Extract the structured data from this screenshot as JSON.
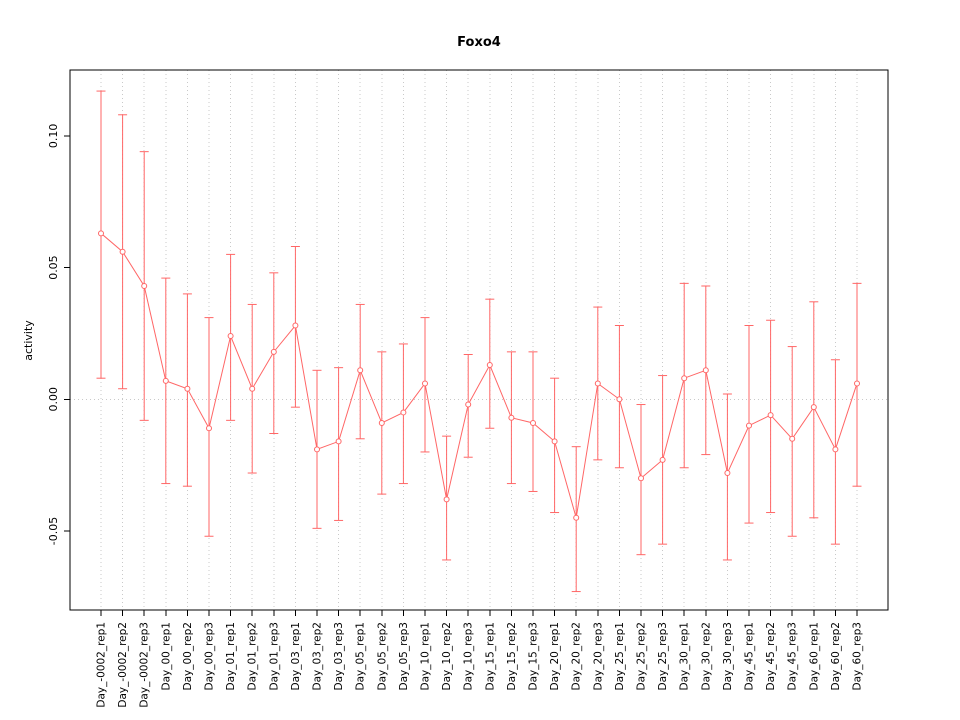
{
  "chart_data": {
    "type": "line",
    "title": "Foxo4",
    "xlabel": "",
    "ylabel": "activity",
    "point_style": "open-circle-with-error-bars",
    "legend": "none",
    "grid": "dotted vertical line at each category; dotted horizontal line at 0",
    "ylim": [
      -0.08,
      0.125
    ],
    "yticks": [
      -0.05,
      0.0,
      0.05,
      0.1
    ],
    "ytick_labels": [
      "-0.05",
      "0.00",
      "0.05",
      "0.10"
    ],
    "colors": {
      "series": "#ff6666",
      "grid": "#c9c9c9",
      "axis": "#000000",
      "background": "#ffffff"
    },
    "categories": [
      "Day_-0002_rep1",
      "Day_-0002_rep2",
      "Day_-0002_rep3",
      "Day_00_rep1",
      "Day_00_rep2",
      "Day_00_rep3",
      "Day_01_rep1",
      "Day_01_rep2",
      "Day_01_rep3",
      "Day_03_rep1",
      "Day_03_rep2",
      "Day_03_rep3",
      "Day_05_rep1",
      "Day_05_rep2",
      "Day_05_rep3",
      "Day_10_rep1",
      "Day_10_rep2",
      "Day_10_rep3",
      "Day_15_rep1",
      "Day_15_rep2",
      "Day_15_rep3",
      "Day_20_rep1",
      "Day_20_rep2",
      "Day_20_rep3",
      "Day_25_rep1",
      "Day_25_rep2",
      "Day_25_rep3",
      "Day_30_rep1",
      "Day_30_rep2",
      "Day_30_rep3",
      "Day_45_rep1",
      "Day_45_rep2",
      "Day_45_rep3",
      "Day_60_rep1",
      "Day_60_rep2",
      "Day_60_rep3"
    ],
    "series": [
      {
        "name": "activity",
        "values": [
          0.063,
          0.056,
          0.043,
          0.007,
          0.004,
          -0.011,
          0.024,
          0.004,
          0.018,
          0.028,
          -0.019,
          -0.016,
          0.011,
          -0.009,
          -0.005,
          0.006,
          -0.038,
          -0.002,
          0.013,
          -0.007,
          -0.009,
          -0.016,
          -0.045,
          0.006,
          0.0,
          -0.03,
          -0.023,
          0.008,
          0.011,
          -0.028,
          -0.01,
          -0.006,
          -0.015,
          -0.003,
          -0.019,
          0.006
        ],
        "error_low": [
          0.008,
          0.004,
          -0.008,
          -0.032,
          -0.033,
          -0.052,
          -0.008,
          -0.028,
          -0.013,
          -0.003,
          -0.049,
          -0.046,
          -0.015,
          -0.036,
          -0.032,
          -0.02,
          -0.061,
          -0.022,
          -0.011,
          -0.032,
          -0.035,
          -0.043,
          -0.073,
          -0.023,
          -0.026,
          -0.059,
          -0.055,
          -0.026,
          -0.021,
          -0.061,
          -0.047,
          -0.043,
          -0.052,
          -0.045,
          -0.055,
          -0.033
        ],
        "error_high": [
          0.117,
          0.108,
          0.094,
          0.046,
          0.04,
          0.031,
          0.055,
          0.036,
          0.048,
          0.058,
          0.011,
          0.012,
          0.036,
          0.018,
          0.021,
          0.031,
          -0.014,
          0.017,
          0.038,
          0.018,
          0.018,
          0.008,
          -0.018,
          0.035,
          0.028,
          -0.002,
          0.009,
          0.044,
          0.043,
          0.002,
          0.028,
          0.03,
          0.02,
          0.037,
          0.015,
          0.044
        ]
      }
    ]
  }
}
